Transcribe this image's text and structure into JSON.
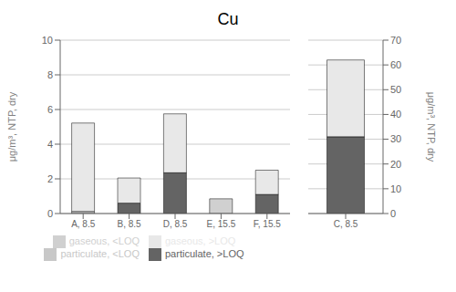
{
  "chart_data": [
    {
      "type": "bar",
      "title": "Cu",
      "stacked": true,
      "grid": true,
      "legend": "bottom",
      "ylabel": "μg/m³, NTP, dry",
      "categories": [
        "A, 8.5",
        "B, 8.5",
        "D, 8.5",
        "E, 15.5",
        "F, 15.5"
      ],
      "series": [
        {
          "name": "particulate, <LOQ",
          "color": "#c8c8c8",
          "values": [
            0.12,
            0.0,
            0.0,
            0.0,
            0.0
          ]
        },
        {
          "name": "particulate, >LOQ",
          "color": "#646464",
          "values": [
            0.0,
            0.6,
            2.35,
            0.0,
            1.1
          ]
        },
        {
          "name": "gaseous, <LOQ",
          "color": "#d0d0d0",
          "values": [
            0.0,
            0.0,
            0.0,
            0.85,
            0.0
          ]
        },
        {
          "name": "gaseous, >LOQ",
          "color": "#e8e8e8",
          "values": [
            5.1,
            1.45,
            3.4,
            0.0,
            1.4
          ]
        }
      ],
      "ylim": [
        0,
        10
      ],
      "yticks": [
        0,
        2,
        4,
        6,
        8,
        10
      ]
    },
    {
      "type": "bar",
      "stacked": true,
      "grid": true,
      "ylabel": "μg/m³, NTP, dry",
      "categories": [
        "C, 8.5"
      ],
      "series": [
        {
          "name": "particulate, <LOQ",
          "color": "#c8c8c8",
          "values": [
            0.0
          ]
        },
        {
          "name": "particulate, >LOQ",
          "color": "#646464",
          "values": [
            31.0
          ]
        },
        {
          "name": "gaseous, <LOQ",
          "color": "#d0d0d0",
          "values": [
            0.0
          ]
        },
        {
          "name": "gaseous, >LOQ",
          "color": "#e8e8e8",
          "values": [
            31.0
          ]
        }
      ],
      "ylim": [
        0,
        70
      ],
      "yticks": [
        0,
        10,
        20,
        30,
        40,
        50,
        60,
        70
      ]
    }
  ]
}
